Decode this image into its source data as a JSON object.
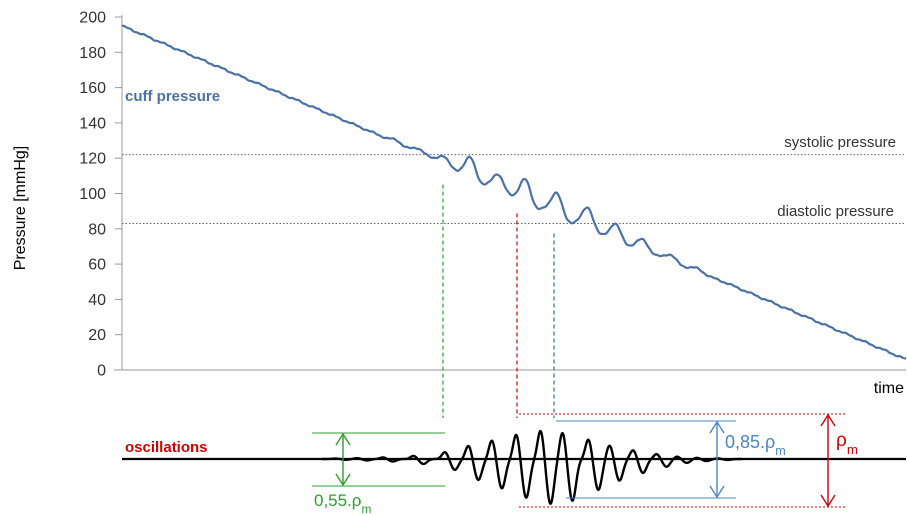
{
  "chart_data": {
    "type": "line",
    "title": "",
    "xlabel": "time",
    "ylabel": "Pressure [mmHg]",
    "ylim": [
      0,
      200
    ],
    "yticks": [
      0,
      20,
      40,
      60,
      80,
      100,
      120,
      140,
      160,
      180,
      200
    ],
    "grid": false,
    "series": [
      {
        "name": "cuff pressure",
        "color": "#4a72a8"
      },
      {
        "name": "oscillations",
        "color": "#000000"
      }
    ],
    "cuff_pressure": {
      "start": 195,
      "end": 6,
      "ripple_events": [
        {
          "t": 0.35,
          "amp": 1.5
        },
        {
          "t": 0.38,
          "amp": 2.5
        },
        {
          "t": 0.41,
          "amp": 4.5
        },
        {
          "t": 0.445,
          "amp": 11
        },
        {
          "t": 0.48,
          "amp": 8
        },
        {
          "t": 0.515,
          "amp": 12
        },
        {
          "t": 0.555,
          "amp": 12
        },
        {
          "t": 0.595,
          "amp": 11
        },
        {
          "t": 0.63,
          "amp": 8
        },
        {
          "t": 0.665,
          "amp": 5.5
        },
        {
          "t": 0.7,
          "amp": 3
        },
        {
          "t": 0.735,
          "amp": 1.5
        }
      ]
    },
    "reference_lines": [
      {
        "label": "systolic pressure",
        "value": 122,
        "color": "#666666"
      },
      {
        "label": "diastolic pressure",
        "value": 83,
        "color": "#666666"
      }
    ],
    "oscillations": {
      "label": "oscillations",
      "label_color": "#d00000",
      "peaks": [
        {
          "t": 0.273,
          "amp": 0.5
        },
        {
          "t": 0.3,
          "amp": 0.9
        },
        {
          "t": 0.333,
          "amp": 1.6
        },
        {
          "t": 0.372,
          "amp": 3.2
        },
        {
          "t": 0.412,
          "amp": 7
        },
        {
          "t": 0.442,
          "amp": 13.5
        },
        {
          "t": 0.472,
          "amp": 19
        },
        {
          "t": 0.503,
          "amp": 25
        },
        {
          "t": 0.534,
          "amp": 29
        },
        {
          "t": 0.562,
          "amp": 27
        },
        {
          "t": 0.595,
          "amp": 20
        },
        {
          "t": 0.622,
          "amp": 14
        },
        {
          "t": 0.652,
          "amp": 9
        },
        {
          "t": 0.682,
          "amp": 5
        },
        {
          "t": 0.708,
          "amp": 2.5
        },
        {
          "t": 0.733,
          "amp": 1.3
        },
        {
          "t": 0.76,
          "amp": 0.6
        }
      ],
      "markers": [
        {
          "label": "0,55.ρ",
          "sub": "m",
          "fraction": 0.55,
          "color": "#2ca02c",
          "side": "left",
          "link": "systolic",
          "link_color": "#2ca02c"
        },
        {
          "label": "0,85.ρ",
          "sub": "m",
          "fraction": 0.85,
          "color": "#4a86c8",
          "side": "right",
          "link": "diastolic",
          "link_color": "#2a6ebb"
        },
        {
          "label": "ρ",
          "sub": "m",
          "fraction": 1.0,
          "color": "#d00000",
          "side": "right",
          "link": "mean",
          "link_color": "#d00000"
        }
      ]
    }
  }
}
